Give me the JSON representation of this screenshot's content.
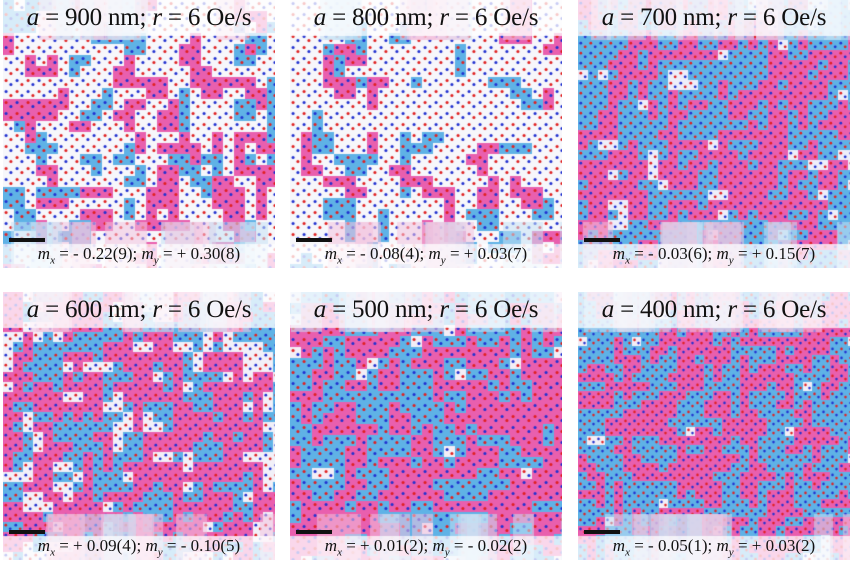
{
  "panels": [
    {
      "a": "900",
      "unit": "nm",
      "r": "6",
      "rate_unit": "Oe/s",
      "mx": "- 0.22(9)",
      "my": "+ 0.30(8)",
      "pink_fraction": 0.26,
      "blue_fraction": 0.17,
      "tile": 11,
      "background": "#f7f7fb"
    },
    {
      "a": "800",
      "unit": "nm",
      "r": "6",
      "rate_unit": "Oe/s",
      "mx": "- 0.08(4)",
      "my": "+ 0.03(7)",
      "pink_fraction": 0.13,
      "blue_fraction": 0.14,
      "tile": 11,
      "background": "#f7f7fb"
    },
    {
      "a": "700",
      "unit": "nm",
      "r": "6",
      "rate_unit": "Oe/s",
      "mx": "- 0.03(6)",
      "my": "+ 0.15(7)",
      "pink_fraction": 0.45,
      "blue_fraction": 0.48,
      "tile": 10,
      "background": "#eeeefa"
    },
    {
      "a": "600",
      "unit": "nm",
      "r": "6",
      "rate_unit": "Oe/s",
      "mx": "+ 0.09(4)",
      "my": "- 0.10(5)",
      "pink_fraction": 0.5,
      "blue_fraction": 0.32,
      "tile": 10,
      "background": "#f2f0f8"
    },
    {
      "a": "500",
      "unit": "nm",
      "r": "6",
      "rate_unit": "Oe/s",
      "mx": "+ 0.01(2)",
      "my": "- 0.02(2)",
      "pink_fraction": 0.55,
      "blue_fraction": 0.42,
      "tile": 11,
      "background": "#f4eef6"
    },
    {
      "a": "400",
      "unit": "nm",
      "r": "6",
      "rate_unit": "Oe/s",
      "mx": "- 0.05(1)",
      "my": "+ 0.03(2)",
      "pink_fraction": 0.48,
      "blue_fraction": 0.5,
      "tile": 9,
      "background": "#f4eef6"
    }
  ],
  "labels": {
    "a_symbol": "a",
    "r_symbol": "r",
    "equals": " = ",
    "separator": "; ",
    "m_symbol": "m",
    "x_sub": "x",
    "y_sub": "y"
  },
  "colors": {
    "pink": "#e95fae",
    "blue": "#5fb2e6",
    "red": "#e02020",
    "navy": "#2030d0",
    "faint_pink": "#f3c3df",
    "faint_blue": "#c6e1f4"
  }
}
